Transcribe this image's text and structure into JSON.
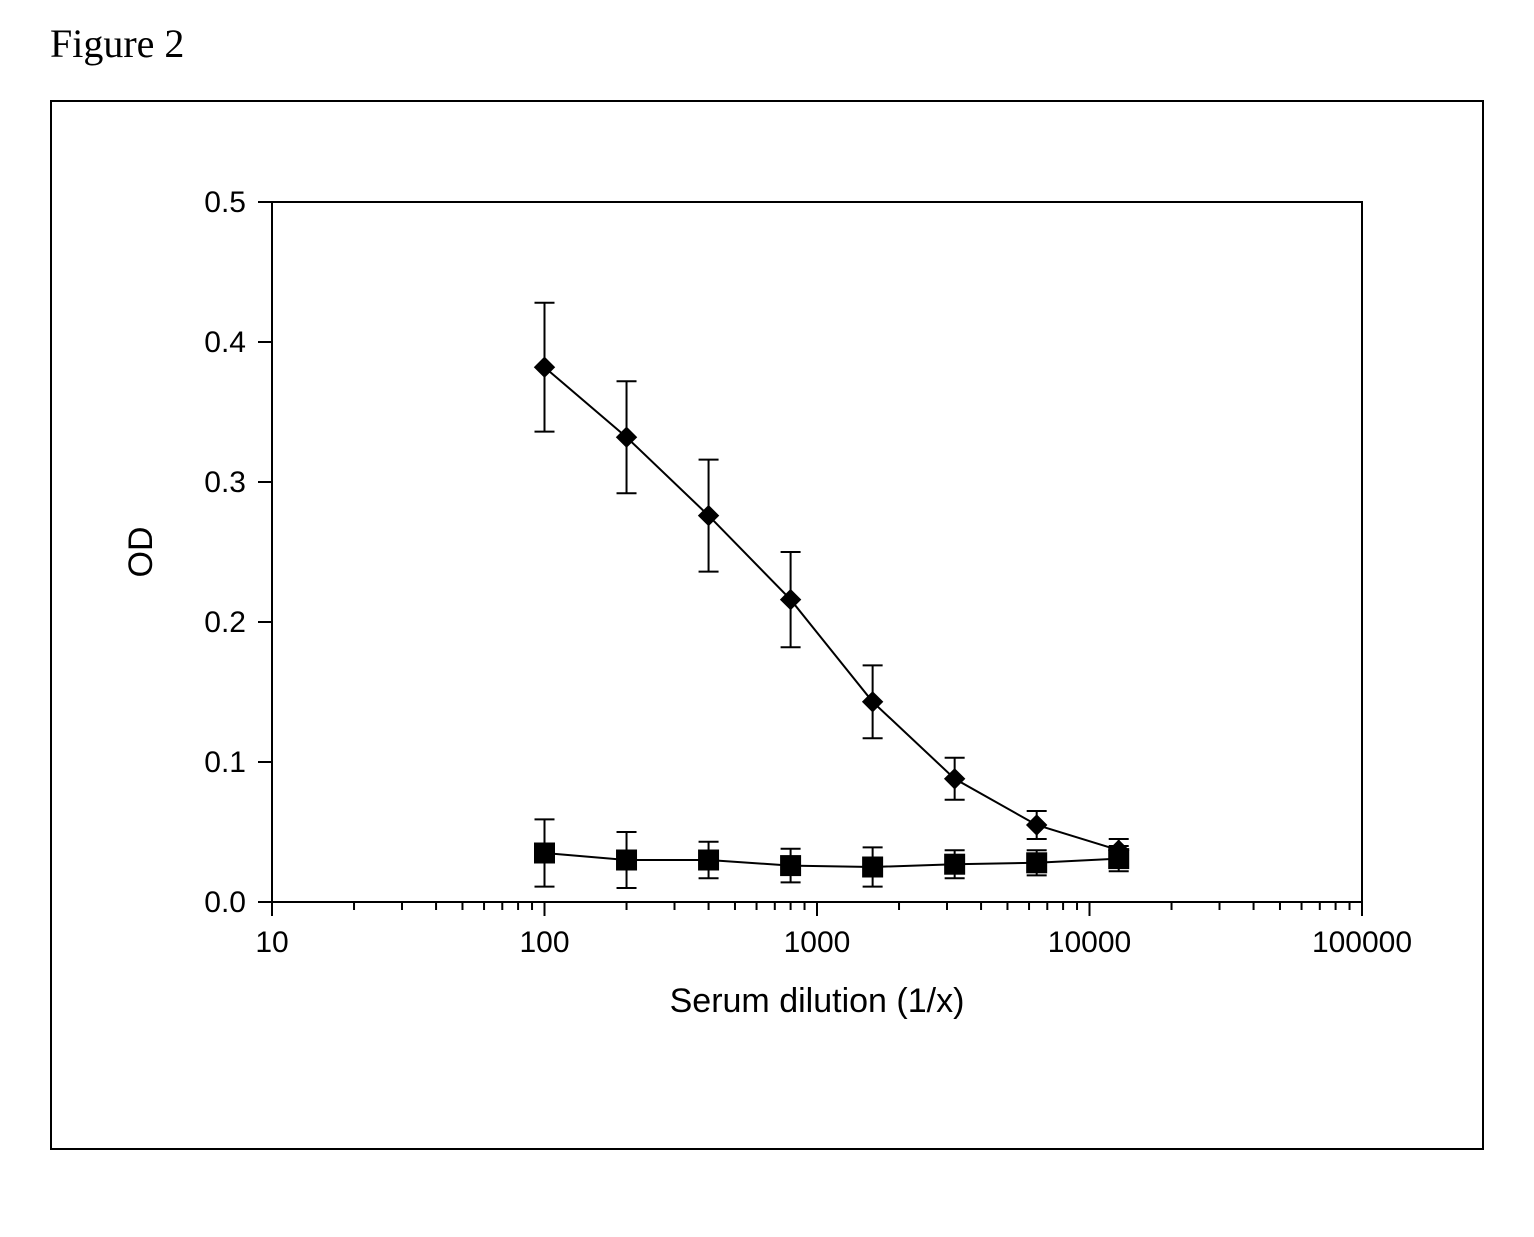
{
  "caption": "Figure 2",
  "caption_fontsize": 40,
  "caption_fontfamily": "Times New Roman",
  "chart": {
    "type": "line-scatter-logx",
    "outer_border_color": "#000000",
    "background_color": "#ffffff",
    "plot_border_color": "#000000",
    "plot_border_width": 2,
    "axis_color": "#000000",
    "tick_color": "#000000",
    "tick_length_major": 14,
    "tick_length_minor": 8,
    "tick_width": 2,
    "axis_label_fontsize": 34,
    "tick_label_fontsize": 30,
    "xlabel": "Serum dilution (1/x)",
    "ylabel": "OD",
    "x_scale": "log10",
    "xlim": [
      10,
      100000
    ],
    "x_major_ticks": [
      10,
      100,
      1000,
      10000,
      100000
    ],
    "x_minor_per_decade": [
      2,
      3,
      4,
      5,
      6,
      7,
      8,
      9
    ],
    "ylim": [
      0.0,
      0.5
    ],
    "y_major_step": 0.1,
    "y_tick_labels": [
      "0.0",
      "0.1",
      "0.2",
      "0.3",
      "0.4",
      "0.5"
    ],
    "series": [
      {
        "name": "diamond-series",
        "marker": "diamond",
        "marker_size": 20,
        "marker_fill": "#000000",
        "line_color": "#000000",
        "line_width": 2,
        "x": [
          100,
          200,
          400,
          800,
          1600,
          3200,
          6400,
          12800
        ],
        "y": [
          0.382,
          0.332,
          0.276,
          0.216,
          0.143,
          0.088,
          0.055,
          0.037
        ],
        "err": [
          0.046,
          0.04,
          0.04,
          0.034,
          0.026,
          0.015,
          0.01,
          0.008
        ],
        "errorbar_cap_width": 20,
        "errorbar_line_width": 2,
        "errorbar_color": "#000000"
      },
      {
        "name": "square-series",
        "marker": "square",
        "marker_size": 20,
        "marker_fill": "#000000",
        "line_color": "#000000",
        "line_width": 2,
        "x": [
          100,
          200,
          400,
          800,
          1600,
          3200,
          6400,
          12800
        ],
        "y": [
          0.035,
          0.03,
          0.03,
          0.026,
          0.025,
          0.027,
          0.028,
          0.031
        ],
        "err": [
          0.024,
          0.02,
          0.013,
          0.012,
          0.014,
          0.01,
          0.009,
          0.009
        ],
        "errorbar_cap_width": 20,
        "errorbar_line_width": 2,
        "errorbar_color": "#000000"
      }
    ]
  }
}
